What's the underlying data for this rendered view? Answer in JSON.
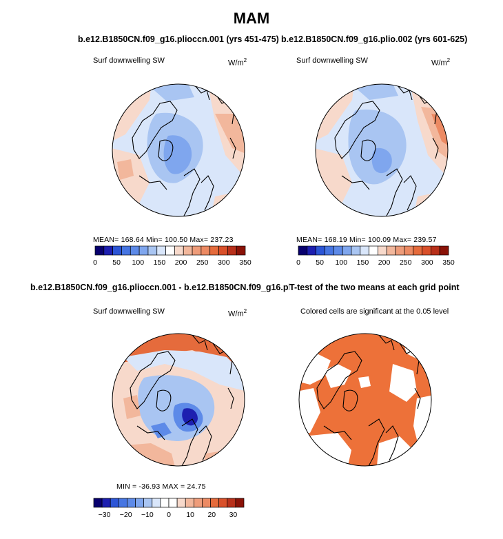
{
  "main_title": "MAM",
  "colors": {
    "deep_blue": "#2c55d6",
    "mid_blue": "#5d8ae8",
    "light_blue": "#a9c5f2",
    "pale_blue": "#d9e6fa",
    "pale_red": "#f7d9cb",
    "light_red": "#f2b79c",
    "mid_red": "#ec8a63",
    "strong_red": "#e56b3c",
    "land_line": "#000000",
    "sig_fill": "#ed7139"
  },
  "panels": {
    "p1": {
      "title": "b.e12.B1850CN.f09_g16.plioccn.001 (yrs 451-475)",
      "variable": "Surf downwelling SW",
      "units": "W/m",
      "units_sup": "2",
      "stats": "MEAN= 168.64   Min= 100.50   Max= 237.23"
    },
    "p2": {
      "title": "b.e12.B1850CN.f09_g16.plio.002 (yrs 601-625)",
      "variable": "Surf downwelling SW",
      "units": "W/m",
      "units_sup": "2",
      "stats": "MEAN= 168.19   Min= 100.09   Max= 239.57"
    },
    "p3": {
      "title": "b.e12.B1850CN.f09_g16.plioccn.001 - b.e12.B1850CN.f09_g16.plio.002",
      "variable": "Surf downwelling SW",
      "units": "W/m",
      "units_sup": "2",
      "stats": "MIN =  -36.93  MAX =   24.75"
    },
    "p4": {
      "title": "T-test of the two means at each grid point",
      "note": "Colored cells are significant at the 0.05 level"
    }
  },
  "chart_data": [
    {
      "type": "heatmap",
      "title": "b.e12.B1850CN.f09_g16.plioccn.001 (yrs 451-475)",
      "projection": "north-polar-stereographic",
      "variable": "Surf downwelling SW",
      "units": "W/m2",
      "mean": 168.64,
      "min": 100.5,
      "max": 237.23,
      "colorbar": {
        "range": [
          0,
          350
        ],
        "step": 25,
        "tick_labels": [
          "0",
          "50",
          "100",
          "150",
          "200",
          "250",
          "300",
          "350"
        ]
      }
    },
    {
      "type": "heatmap",
      "title": "b.e12.B1850CN.f09_g16.plio.002 (yrs 601-625)",
      "projection": "north-polar-stereographic",
      "variable": "Surf downwelling SW",
      "units": "W/m2",
      "mean": 168.19,
      "min": 100.09,
      "max": 239.57,
      "colorbar": {
        "range": [
          0,
          350
        ],
        "step": 25,
        "tick_labels": [
          "0",
          "50",
          "100",
          "150",
          "200",
          "250",
          "300",
          "350"
        ]
      }
    },
    {
      "type": "heatmap",
      "title": "b.e12.B1850CN.f09_g16.plioccn.001 - b.e12.B1850CN.f09_g16.plio.002",
      "projection": "north-polar-stereographic",
      "variable": "Surf downwelling SW",
      "units": "W/m2",
      "min": -36.93,
      "max": 24.75,
      "colorbar": {
        "range": [
          -35,
          35
        ],
        "step": 5,
        "tick_labels": [
          "−30",
          "−20",
          "−10",
          "0",
          "10",
          "20",
          "30"
        ]
      }
    },
    {
      "type": "heatmap",
      "title": "T-test of the two means at each grid point",
      "projection": "north-polar-stereographic",
      "note": "Colored cells are significant at the 0.05 level",
      "significance_level": 0.05
    }
  ],
  "colorbar_abs": [
    "#08006e",
    "#1d1fb0",
    "#2c55d6",
    "#4675e2",
    "#5d8ae8",
    "#7fa6ee",
    "#a9c5f2",
    "#d9e6fa",
    "#ffffff",
    "#f7d9cb",
    "#f2b79c",
    "#ee9c7a",
    "#ec8a63",
    "#e56b3c",
    "#d9502a",
    "#b8301a",
    "#8a1207"
  ],
  "colorbar_diff": [
    "#08006e",
    "#1d1fb0",
    "#2c55d6",
    "#4675e2",
    "#5d8ae8",
    "#7fa6ee",
    "#a9c5f2",
    "#d9e6fa",
    "#ffffff",
    "#ffffff",
    "#f7d9cb",
    "#f2b79c",
    "#ee9c7a",
    "#ec8a63",
    "#e56b3c",
    "#d9502a",
    "#b8301a",
    "#8a1207"
  ]
}
